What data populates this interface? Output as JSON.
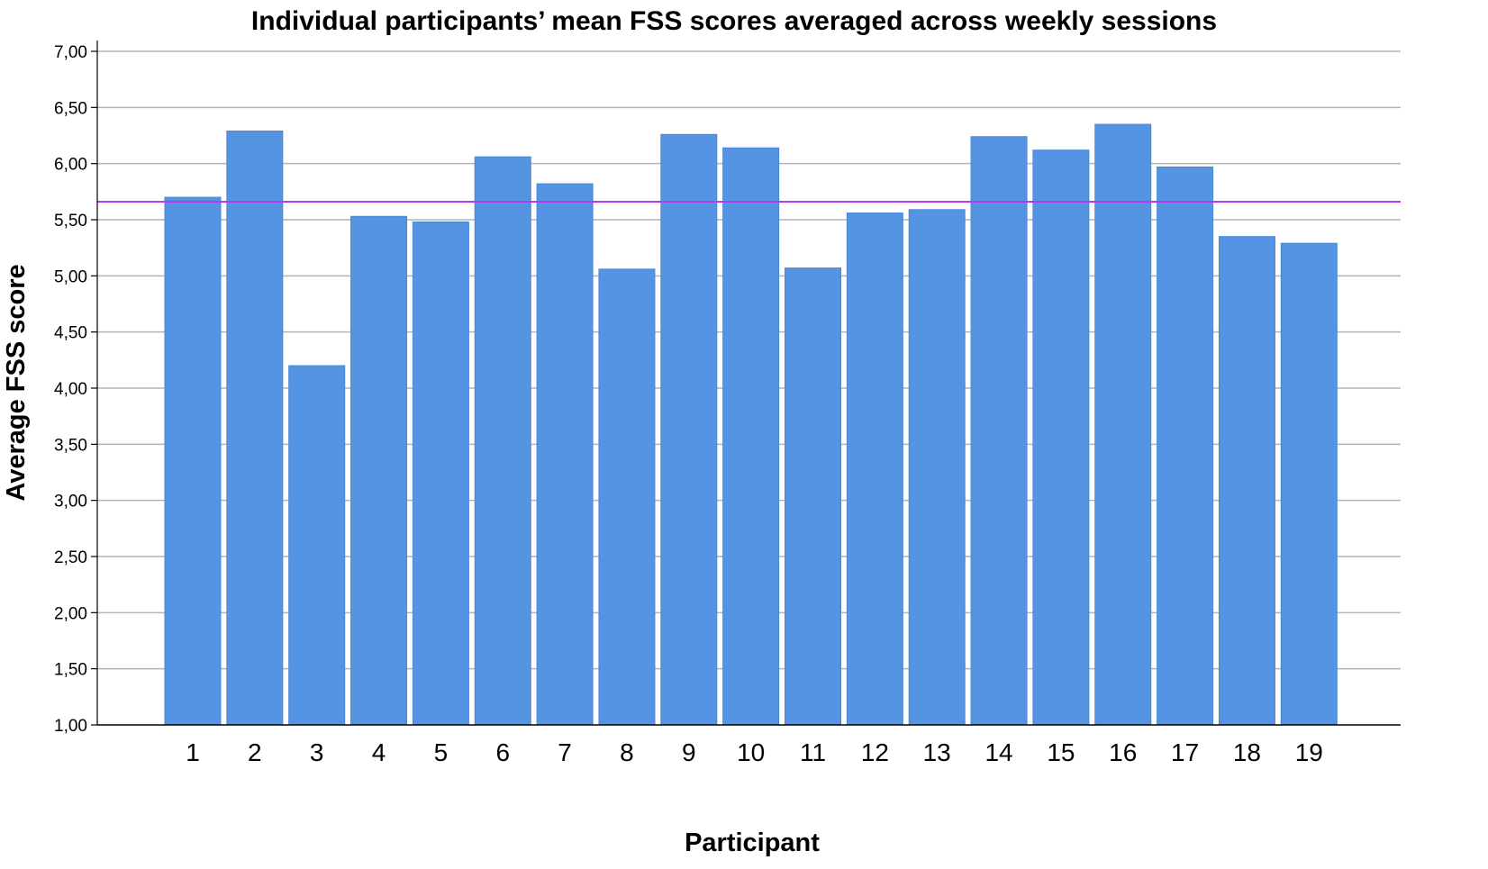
{
  "chart_data": {
    "type": "bar",
    "title": "Individual participants’ mean FSS scores averaged across weekly sessions",
    "xlabel": "Participant",
    "ylabel": "Average FSS score",
    "categories": [
      "1",
      "2",
      "3",
      "4",
      "5",
      "6",
      "7",
      "8",
      "9",
      "10",
      "11",
      "12",
      "13",
      "14",
      "15",
      "16",
      "17",
      "18",
      "19"
    ],
    "values": [
      5.7,
      6.29,
      4.2,
      5.53,
      5.48,
      6.06,
      5.82,
      5.06,
      6.26,
      6.14,
      5.07,
      5.56,
      5.59,
      6.24,
      6.12,
      6.35,
      5.97,
      5.35,
      5.29
    ],
    "ylim": [
      1.0,
      7.0
    ],
    "yticks": [
      1.0,
      1.5,
      2.0,
      2.5,
      3.0,
      3.5,
      4.0,
      4.5,
      5.0,
      5.5,
      6.0,
      6.5,
      7.0
    ],
    "ytick_labels": [
      "1,00",
      "1,50",
      "2,00",
      "2,50",
      "3,00",
      "3,50",
      "4,00",
      "4,50",
      "5,00",
      "5,50",
      "6,00",
      "6,50",
      "7,00"
    ],
    "reference_line": 5.66,
    "grid": true,
    "colors": {
      "bar": "#5594e3",
      "bar_edge": "#4a86d6",
      "reference_line": "#b43cf0",
      "grid": "#b4b4b4",
      "axis": "#000000"
    }
  }
}
